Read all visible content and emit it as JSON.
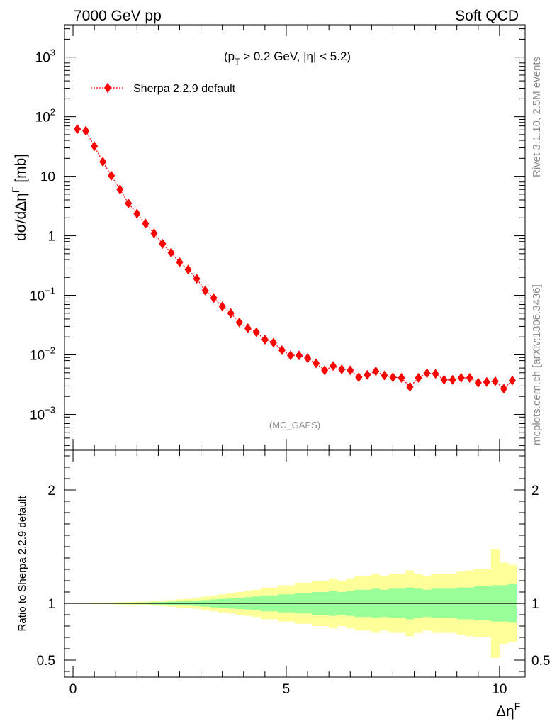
{
  "header": {
    "left": "7000 GeV pp",
    "right": "Soft QCD"
  },
  "side_labels": {
    "rivet": "Rivet 3.1.10,  2.5M events",
    "mcplots": "mcplots.cern.ch [arXiv:1306.3436]"
  },
  "colors": {
    "series": "#ff0000",
    "band_inner": "#99ff99",
    "band_outer": "#ffff99"
  },
  "chart_data": [
    {
      "type": "scatter",
      "annotation": "(p_T > 0.2 GeV, |η| < 5.2)",
      "watermark": "(MC_GAPS)",
      "ylabel": "dσ/dΔη^F [mb]",
      "yscale": "log",
      "xlim": [
        -0.2,
        10.6
      ],
      "ylim": [
        0.00025,
        3500
      ],
      "ytick_labels": [
        "10^-3",
        "10^-2",
        "10^-1",
        "1",
        "10",
        "10^2",
        "10^3"
      ],
      "legend": {
        "position": "top-left"
      },
      "series": [
        {
          "name": "Sherpa 2.2.9 default",
          "x": [
            0.1,
            0.3,
            0.5,
            0.7,
            0.9,
            1.1,
            1.3,
            1.5,
            1.7,
            1.9,
            2.1,
            2.3,
            2.5,
            2.7,
            2.9,
            3.1,
            3.3,
            3.5,
            3.7,
            3.9,
            4.1,
            4.3,
            4.5,
            4.7,
            4.9,
            5.1,
            5.3,
            5.5,
            5.7,
            5.9,
            6.1,
            6.3,
            6.5,
            6.7,
            6.9,
            7.1,
            7.3,
            7.5,
            7.7,
            7.9,
            8.1,
            8.3,
            8.5,
            8.7,
            8.9,
            9.1,
            9.3,
            9.5,
            9.7,
            9.9,
            10.1,
            10.3
          ],
          "y": [
            62,
            58,
            32,
            17.5,
            10.2,
            6.0,
            3.5,
            2.35,
            1.6,
            1.1,
            0.73,
            0.52,
            0.36,
            0.27,
            0.19,
            0.12,
            0.09,
            0.065,
            0.05,
            0.035,
            0.028,
            0.024,
            0.018,
            0.016,
            0.012,
            0.0098,
            0.0098,
            0.0088,
            0.0072,
            0.0055,
            0.0065,
            0.0057,
            0.0055,
            0.0042,
            0.0046,
            0.0053,
            0.0045,
            0.0042,
            0.0041,
            0.0029,
            0.0041,
            0.0049,
            0.0048,
            0.0038,
            0.0038,
            0.0041,
            0.0041,
            0.0034,
            0.0035,
            0.0036,
            0.0027,
            0.0037
          ]
        }
      ]
    },
    {
      "type": "area",
      "ylabel": "Ratio to Sherpa 2.2.9 default",
      "xlabel": "Δη^F",
      "xlim": [
        -0.2,
        10.6
      ],
      "ylim": [
        0.35,
        2.35
      ],
      "xtick_labels": [
        "0",
        "5",
        "10"
      ],
      "ytick_labels": [
        "0.5",
        "1",
        "2"
      ],
      "reference_line": 1,
      "bin_edges": [
        0.0,
        0.2,
        0.4,
        0.6,
        0.8,
        1.0,
        1.2,
        1.4,
        1.6,
        1.8,
        2.0,
        2.2,
        2.4,
        2.6,
        2.8,
        3.0,
        3.2,
        3.4,
        3.6,
        3.8,
        4.0,
        4.2,
        4.4,
        4.6,
        4.8,
        5.0,
        5.2,
        5.4,
        5.6,
        5.8,
        6.0,
        6.2,
        6.4,
        6.6,
        6.8,
        7.0,
        7.2,
        7.4,
        7.6,
        7.8,
        8.0,
        8.2,
        8.4,
        8.6,
        8.8,
        9.0,
        9.2,
        9.4,
        9.6,
        9.8,
        10.0,
        10.2,
        10.4
      ],
      "inner_band": [
        0.002,
        0.002,
        0.003,
        0.003,
        0.004,
        0.005,
        0.006,
        0.007,
        0.008,
        0.01,
        0.012,
        0.015,
        0.018,
        0.02,
        0.024,
        0.03,
        0.035,
        0.04,
        0.045,
        0.05,
        0.055,
        0.06,
        0.07,
        0.07,
        0.08,
        0.08,
        0.09,
        0.09,
        0.1,
        0.1,
        0.11,
        0.1,
        0.11,
        0.12,
        0.12,
        0.13,
        0.12,
        0.13,
        0.13,
        0.14,
        0.13,
        0.12,
        0.13,
        0.13,
        0.13,
        0.14,
        0.14,
        0.15,
        0.15,
        0.16,
        0.16,
        0.17
      ],
      "outer_band": [
        0.004,
        0.004,
        0.006,
        0.006,
        0.008,
        0.01,
        0.012,
        0.014,
        0.016,
        0.02,
        0.024,
        0.03,
        0.036,
        0.04,
        0.048,
        0.06,
        0.07,
        0.08,
        0.09,
        0.1,
        0.11,
        0.12,
        0.14,
        0.14,
        0.16,
        0.16,
        0.18,
        0.18,
        0.2,
        0.2,
        0.22,
        0.2,
        0.22,
        0.24,
        0.24,
        0.26,
        0.24,
        0.26,
        0.26,
        0.29,
        0.26,
        0.24,
        0.26,
        0.26,
        0.26,
        0.28,
        0.29,
        0.3,
        0.3,
        0.48,
        0.36,
        0.34
      ]
    }
  ]
}
